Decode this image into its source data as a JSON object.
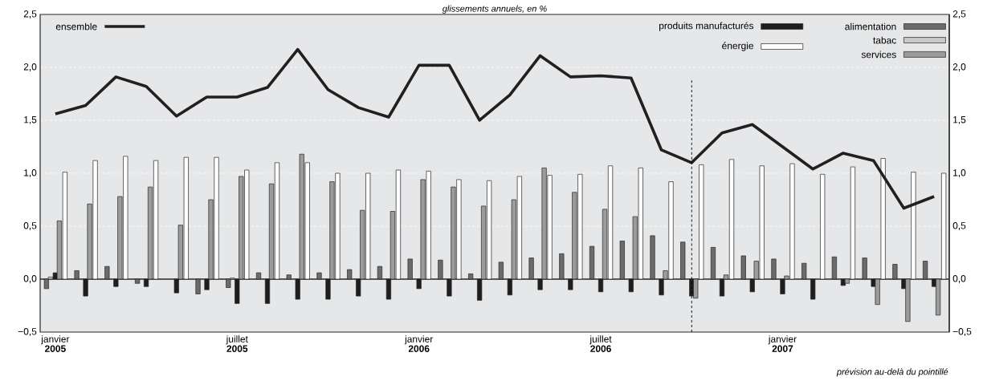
{
  "chart_data": {
    "type": "bar",
    "title": "glissements annuels, en %",
    "categories": [
      "janvier **2005**",
      null,
      null,
      null,
      null,
      null,
      "juillet **2005**",
      null,
      null,
      null,
      null,
      null,
      "janvier **2006**",
      null,
      null,
      null,
      null,
      null,
      "juillet **2006**",
      null,
      null,
      null,
      null,
      null,
      "janvier **2007**",
      null,
      null,
      null,
      null,
      null
    ],
    "series": [
      {
        "name": "alimentation",
        "color": "#6b6b6b",
        "values": [
          -0.09,
          0.08,
          0.12,
          -0.04,
          null,
          -0.14,
          -0.08,
          0.06,
          0.04,
          0.06,
          0.09,
          0.12,
          0.19,
          0.18,
          0.05,
          0.16,
          0.2,
          0.24,
          0.31,
          0.36,
          0.41,
          0.35,
          0.3,
          0.22,
          0.19,
          0.15,
          0.21,
          0.2,
          0.14,
          0.17
        ]
      },
      {
        "name": "tabac",
        "color": "#c8c8c8",
        "values": [
          0.02,
          null,
          null,
          null,
          null,
          null,
          0.01,
          null,
          null,
          null,
          null,
          null,
          null,
          null,
          null,
          null,
          null,
          null,
          null,
          null,
          null,
          null,
          null,
          null,
          null,
          null,
          null,
          null,
          null,
          null
        ]
      },
      {
        "name": "produits manufacturés",
        "color": "#1e1e1e",
        "values": [
          0.06,
          -0.16,
          -0.07,
          -0.07,
          -0.13,
          -0.1,
          -0.23,
          -0.23,
          -0.19,
          -0.19,
          -0.16,
          -0.19,
          -0.09,
          -0.16,
          -0.2,
          -0.15,
          -0.1,
          -0.1,
          -0.12,
          -0.12,
          -0.15,
          -0.16,
          -0.16,
          -0.12,
          -0.14,
          -0.19,
          -0.06,
          -0.07,
          -0.09,
          -0.07
        ]
      },
      {
        "name": "services",
        "color": "#9c9c9c",
        "values": [
          0.55,
          0.71,
          0.78,
          0.87,
          0.51,
          0.75,
          0.97,
          0.9,
          1.18,
          0.92,
          0.65,
          0.64,
          0.94,
          0.87,
          0.69,
          0.75,
          1.05,
          0.82,
          0.66,
          0.59,
          0.08,
          -0.18,
          0.04,
          0.17,
          0.03,
          null,
          -0.04,
          -0.24,
          -0.4,
          -0.34
        ]
      },
      {
        "name": "énergie",
        "color": "#ffffff",
        "values": [
          1.01,
          1.12,
          1.16,
          1.12,
          1.15,
          1.15,
          1.03,
          1.1,
          1.1,
          1.0,
          1.0,
          1.03,
          1.02,
          0.94,
          0.93,
          0.97,
          0.98,
          0.99,
          1.07,
          1.05,
          0.92,
          1.08,
          1.13,
          1.07,
          1.09,
          0.99,
          1.06,
          1.14,
          1.01,
          1.0
        ]
      },
      {
        "name": "ensemble",
        "type": "line",
        "color": "#231f20",
        "values": [
          1.56,
          1.64,
          1.91,
          1.82,
          1.54,
          1.72,
          1.72,
          1.81,
          2.17,
          1.79,
          1.62,
          1.53,
          2.02,
          2.02,
          1.5,
          1.74,
          2.11,
          1.91,
          1.92,
          1.9,
          1.22,
          1.1,
          1.38,
          1.46,
          1.25,
          1.04,
          1.19,
          1.12,
          0.67,
          0.78
        ]
      }
    ],
    "ylim": [
      -0.5,
      2.5
    ],
    "yticks": [
      {
        "value": -0.5,
        "label": "−0,5"
      },
      {
        "value": 0,
        "label": "0,0"
      },
      {
        "value": 0.5,
        "label": "0,5"
      },
      {
        "value": 1,
        "label": "1,0"
      },
      {
        "value": 1.5,
        "label": "1,5"
      },
      {
        "value": 2,
        "label": "2,0"
      },
      {
        "value": 2.5,
        "label": "2,5"
      }
    ],
    "y2lim": [
      -0.5,
      2.5
    ],
    "y2ticks": [
      {
        "value": -0.5,
        "label": "−0,5"
      },
      {
        "value": 0,
        "label": "0,0"
      },
      {
        "value": 0.5,
        "label": "0,5"
      },
      {
        "value": 1,
        "label": "1,0"
      },
      {
        "value": 1.5,
        "label": "1,5"
      },
      {
        "value": 2,
        "label": "2,0"
      },
      {
        "value": 2.5,
        "label": "2,5"
      }
    ],
    "grid": "y",
    "legend": "top",
    "annotations": [
      "prévision au-delà du pointillé"
    ]
  }
}
